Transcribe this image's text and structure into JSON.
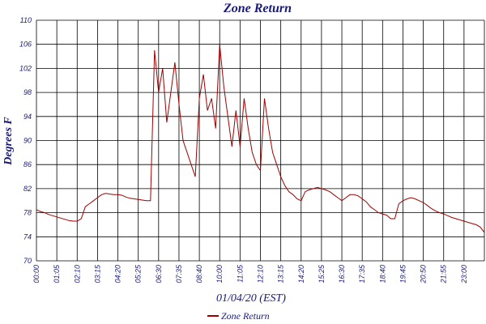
{
  "chart_data": {
    "type": "line",
    "title": "Zone Return",
    "x_label": "01/04/20 (EST)",
    "y_label": "Degrees F",
    "x_labels": [
      "00:00",
      "01:05",
      "02:10",
      "03:15",
      "04:20",
      "05:25",
      "06:30",
      "07:35",
      "08:40",
      "10:00",
      "11:05",
      "12:10",
      "13:15",
      "14:20",
      "15:25",
      "16:30",
      "17:35",
      "18:40",
      "19:45",
      "20:50",
      "21:55",
      "23:00"
    ],
    "ylim": [
      70,
      110
    ],
    "yticks": [
      70,
      74,
      78,
      82,
      86,
      90,
      94,
      98,
      102,
      106,
      110
    ],
    "grid": true,
    "legend": "bottom",
    "series": [
      {
        "name": "Zone Return",
        "color": "#a00000",
        "values": [
          78.5,
          78.2,
          78,
          77.7,
          77.5,
          77.3,
          77.1,
          76.9,
          76.7,
          76.6,
          76.6,
          77,
          79,
          79.5,
          80,
          80.5,
          81,
          81.2,
          81.1,
          81,
          81,
          80.9,
          80.6,
          80.4,
          80.3,
          80.2,
          80.1,
          80,
          80,
          105,
          98,
          102,
          93,
          98,
          103,
          96,
          90,
          88,
          86,
          84,
          97,
          101,
          95,
          97,
          92,
          106,
          99,
          94,
          89,
          95,
          89,
          97,
          92,
          88,
          86,
          85,
          97,
          92,
          88,
          86,
          84,
          82.5,
          81.5,
          81,
          80.3,
          80,
          81.5,
          81.8,
          82,
          82.2,
          82,
          81.8,
          81.5,
          81,
          80.5,
          80,
          80.5,
          81,
          81,
          80.8,
          80.3,
          79.8,
          79,
          78.5,
          78,
          77.8,
          77.6,
          77,
          77,
          79.5,
          80,
          80.3,
          80.5,
          80.3,
          80,
          79.7,
          79.2,
          78.7,
          78.3,
          78,
          77.8,
          77.5,
          77.2,
          77,
          76.8,
          76.6,
          76.4,
          76.2,
          76,
          75.6,
          74.7
        ]
      }
    ]
  }
}
